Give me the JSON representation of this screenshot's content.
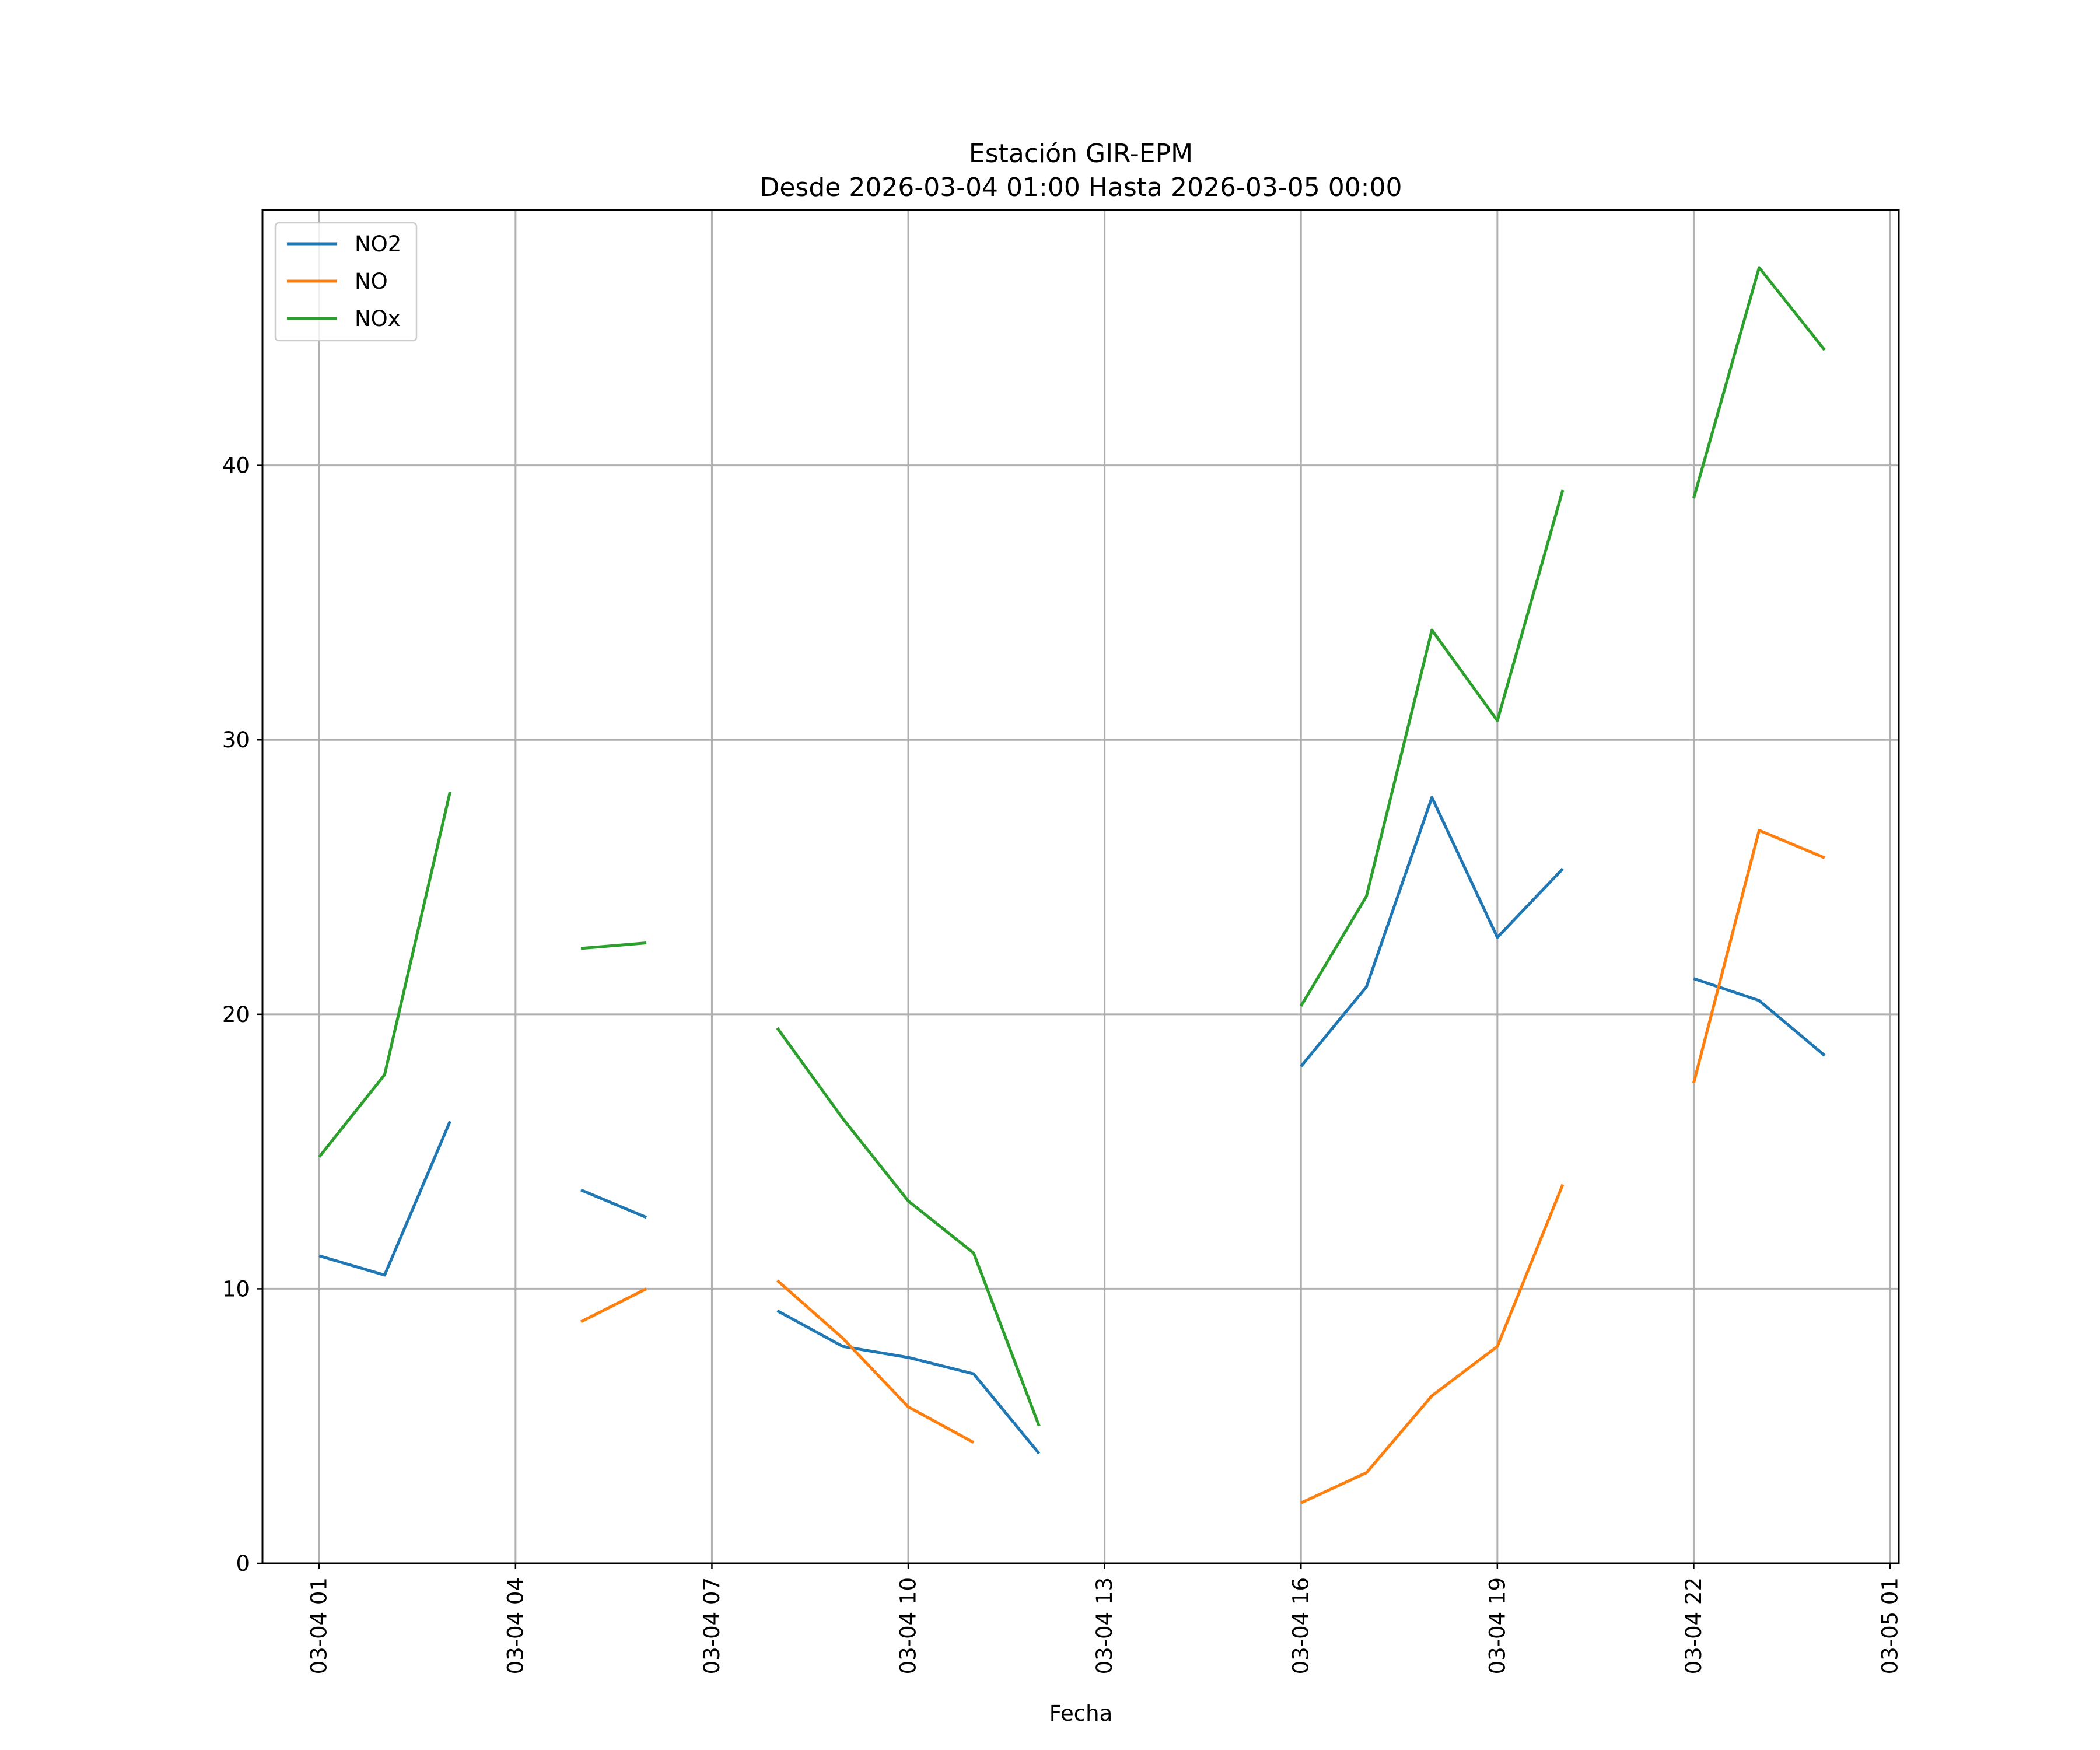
{
  "chart_data": {
    "type": "line",
    "title": "Estación GIR-EPM",
    "subtitle": "Desde 2026-03-04 01:00 Hasta 2026-03-05 00:00",
    "xlabel": "Fecha",
    "ylabel": "",
    "x": [
      "2026-03-04 01:00",
      "2026-03-04 02:00",
      "2026-03-04 03:00",
      "2026-03-04 04:00",
      "2026-03-04 05:00",
      "2026-03-04 06:00",
      "2026-03-04 07:00",
      "2026-03-04 08:00",
      "2026-03-04 09:00",
      "2026-03-04 10:00",
      "2026-03-04 11:00",
      "2026-03-04 12:00",
      "2026-03-04 13:00",
      "2026-03-04 14:00",
      "2026-03-04 15:00",
      "2026-03-04 16:00",
      "2026-03-04 17:00",
      "2026-03-04 18:00",
      "2026-03-04 19:00",
      "2026-03-04 20:00",
      "2026-03-04 21:00",
      "2026-03-04 22:00",
      "2026-03-04 23:00",
      "2026-03-05 00:00"
    ],
    "series": [
      {
        "name": "NO2",
        "color": "#1f77b4",
        "values": [
          11.2,
          10.5,
          16.1,
          null,
          13.6,
          12.6,
          null,
          9.2,
          7.9,
          7.5,
          6.9,
          4.0,
          null,
          null,
          null,
          18.1,
          21.0,
          27.9,
          22.8,
          25.3,
          null,
          21.3,
          20.5,
          18.5
        ]
      },
      {
        "name": "NO",
        "color": "#ff7f0e",
        "values": [
          null,
          null,
          null,
          null,
          8.8,
          10.0,
          null,
          10.3,
          8.2,
          5.7,
          4.4,
          null,
          null,
          null,
          null,
          2.2,
          3.3,
          6.1,
          7.9,
          13.8,
          null,
          17.5,
          26.7,
          25.7
        ]
      },
      {
        "name": "NOx",
        "color": "#2ca02c",
        "values": [
          14.8,
          17.8,
          28.1,
          null,
          22.4,
          22.6,
          null,
          19.5,
          16.2,
          13.2,
          11.3,
          5.0,
          null,
          null,
          null,
          20.3,
          24.3,
          34.0,
          30.7,
          39.1,
          null,
          38.8,
          47.2,
          44.2
        ]
      }
    ],
    "yticks": [
      "0",
      "10",
      "20",
      "30",
      "40"
    ],
    "xticks": [
      "03-04 01",
      "03-04 04",
      "03-04 07",
      "03-04 10",
      "03-04 13",
      "03-04 16",
      "03-04 19",
      "03-04 22",
      "03-05 01"
    ],
    "ylim": [
      0,
      49.3
    ],
    "xlim": [
      "2026-03-04 00:08",
      "2026-03-05 01:08"
    ],
    "grid": true,
    "legend_position": "top-left"
  }
}
